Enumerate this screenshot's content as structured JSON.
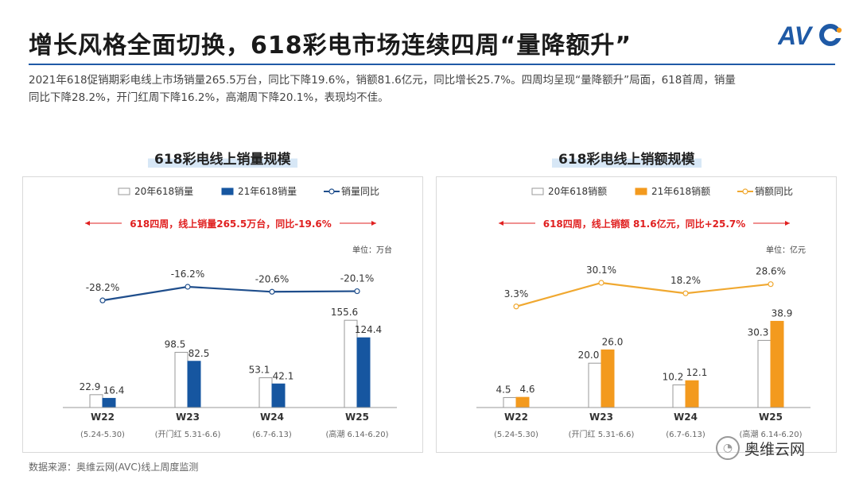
{
  "header": {
    "title": "增长风格全面切换，618彩电市场连续四周“量降额升”",
    "summary_line1": "2021年618促销期彩电线上市场销量265.5万台，同比下降19.6%，销额81.6亿元，同比增长25.7%。四周均呈现“量降额升”局面，618首周，销量",
    "summary_line2": "同比下降28.2%，开门红周下降16.2%，高潮周下降20.1%，表现均不佳。"
  },
  "logo": {
    "text": "AVC",
    "colors": {
      "blue": "#1f5aa6",
      "orange": "#f39a1e"
    }
  },
  "footer": {
    "source": "数据来源：奥维云网(AVC)线上周度监测",
    "brand": "奥维云网",
    "brand_icon": "wechat-icon"
  },
  "chart_data": [
    {
      "type": "bar",
      "title": "618彩电线上销量规模",
      "unit": "单位：万台",
      "annotation": "618四周，线上销量265.5万台，同比-19.6%",
      "categories": [
        "W22",
        "W23",
        "W24",
        "W25"
      ],
      "category_sub": [
        "(5.24-5.30)",
        "(开门红 5.31-6.6)",
        "(6.7-6.13)",
        "(高潮 6.14-6.20)"
      ],
      "series": [
        {
          "name": "20年618销量",
          "kind": "bar",
          "color": "#ffffff",
          "stroke": "#999999",
          "values": [
            22.9,
            98.5,
            53.1,
            155.6
          ],
          "labels": [
            "22.9",
            "98.5",
            "53.1",
            "155.6"
          ]
        },
        {
          "name": "21年618销量",
          "kind": "bar",
          "color": "#1656a0",
          "stroke": "#1656a0",
          "values": [
            16.4,
            82.5,
            42.1,
            124.4
          ],
          "labels": [
            "16.4",
            "82.5",
            "42.1",
            "124.4"
          ]
        },
        {
          "name": "销量同比",
          "kind": "line",
          "color": "#1f4e8c",
          "values": [
            -28.2,
            -16.2,
            -20.6,
            -20.1
          ],
          "labels": [
            "-28.2%",
            "-16.2%",
            "-20.6%",
            "-20.1%"
          ]
        }
      ],
      "bar_max": 170,
      "line_range": [
        -40,
        -5
      ]
    },
    {
      "type": "bar",
      "title": "618彩电线上销额规模",
      "unit": "单位：亿元",
      "annotation": "618四周，线上销额 81.6亿元，同比+25.7%",
      "categories": [
        "W22",
        "W23",
        "W24",
        "W25"
      ],
      "category_sub": [
        "(5.24-5.30)",
        "(开门红 5.31-6.6)",
        "(6.7-6.13)",
        "(高潮 6.14-6.20)"
      ],
      "series": [
        {
          "name": "20年618销额",
          "kind": "bar",
          "color": "#ffffff",
          "stroke": "#999999",
          "values": [
            4.5,
            20.0,
            10.2,
            30.3
          ],
          "labels": [
            "4.5",
            "20.0",
            "10.2",
            "30.3"
          ]
        },
        {
          "name": "21年618销额",
          "kind": "bar",
          "color": "#f39a1e",
          "stroke": "#f39a1e",
          "values": [
            4.6,
            26.0,
            12.1,
            38.9
          ],
          "labels": [
            "4.6",
            "26.0",
            "12.1",
            "38.9"
          ]
        },
        {
          "name": "销额同比",
          "kind": "line",
          "color": "#f0a830",
          "values": [
            3.3,
            30.1,
            18.2,
            28.6
          ],
          "labels": [
            "3.3%",
            "30.1%",
            "18.2%",
            "28.6%"
          ]
        }
      ],
      "bar_max": 43,
      "line_range": [
        -5,
        40
      ]
    }
  ]
}
